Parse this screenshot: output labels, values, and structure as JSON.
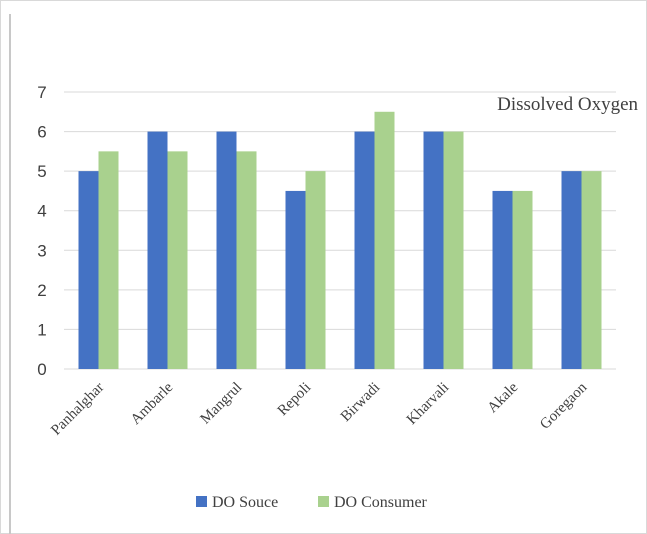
{
  "chart_data": {
    "type": "bar",
    "title": "Dissolved Oxygen",
    "categories": [
      "Panhalghar",
      "Ambarle",
      "Mangrul",
      "Repoli",
      "Birwadi",
      "Kharvali",
      "Akale",
      "Goregaon"
    ],
    "series": [
      {
        "name": "DO Souce",
        "values": [
          5,
          6,
          6,
          4.5,
          6,
          6,
          4.5,
          5
        ],
        "color": "#4472c4"
      },
      {
        "name": "DO Consumer",
        "values": [
          5.5,
          5.5,
          5.5,
          5,
          6.5,
          6,
          4.5,
          5
        ],
        "color": "#a9d18e"
      }
    ],
    "yticks": [
      "0",
      "1",
      "2",
      "3",
      "4",
      "5",
      "6",
      "7"
    ],
    "ylim": [
      0,
      7
    ],
    "grid": true,
    "legend": "bottom",
    "xlabel": "",
    "ylabel": ""
  }
}
